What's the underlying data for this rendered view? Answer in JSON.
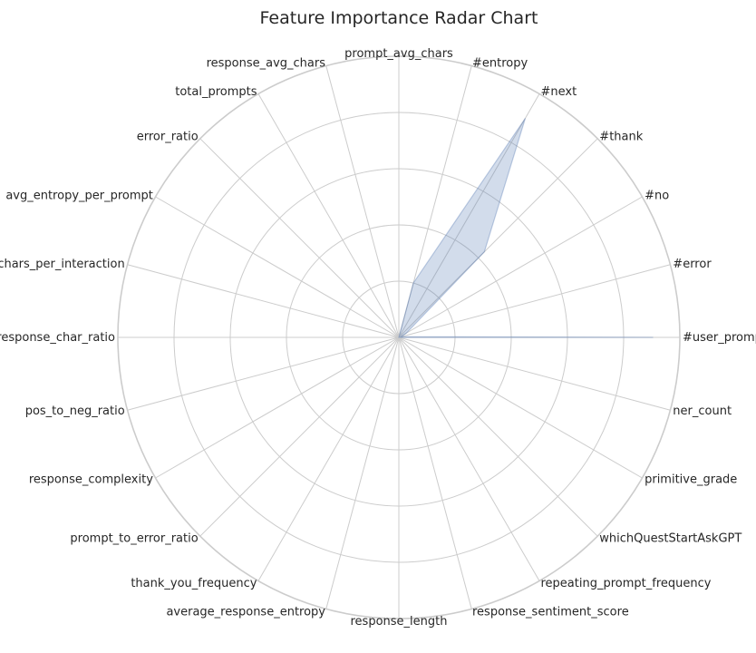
{
  "chart_data": {
    "type": "radar",
    "title": "Feature Importance Radar Chart",
    "categories": [
      "#user_prompts",
      "#error",
      "#no",
      "#thank",
      "#next",
      "#entropy",
      "prompt_avg_chars",
      "response_avg_chars",
      "total_prompts",
      "error_ratio",
      "avg_entropy_per_prompt",
      "total_chars_per_interaction",
      "prompt_response_char_ratio",
      "pos_to_neg_ratio",
      "response_complexity",
      "prompt_to_error_ratio",
      "thank_you_frequency",
      "average_response_entropy",
      "response_length",
      "response_sentiment_score",
      "repeating_prompt_frequency",
      "whichQuestStartAskGPT",
      "primitive_grade",
      "ner_count"
    ],
    "values": [
      0.905,
      0.01,
      0.03,
      0.43,
      0.9,
      0.2,
      0.0,
      0.0,
      0.0,
      0.0,
      0.0,
      0.0,
      0.0,
      0.0,
      0.0,
      0.0,
      0.0,
      0.0,
      0.0,
      0.0,
      0.0,
      0.0,
      0.0,
      0.0
    ],
    "rlim": [
      0,
      1.0
    ],
    "rings": [
      0.2,
      0.4,
      0.6,
      0.8,
      1.0
    ],
    "grid": true,
    "color": "#4c72b0"
  }
}
